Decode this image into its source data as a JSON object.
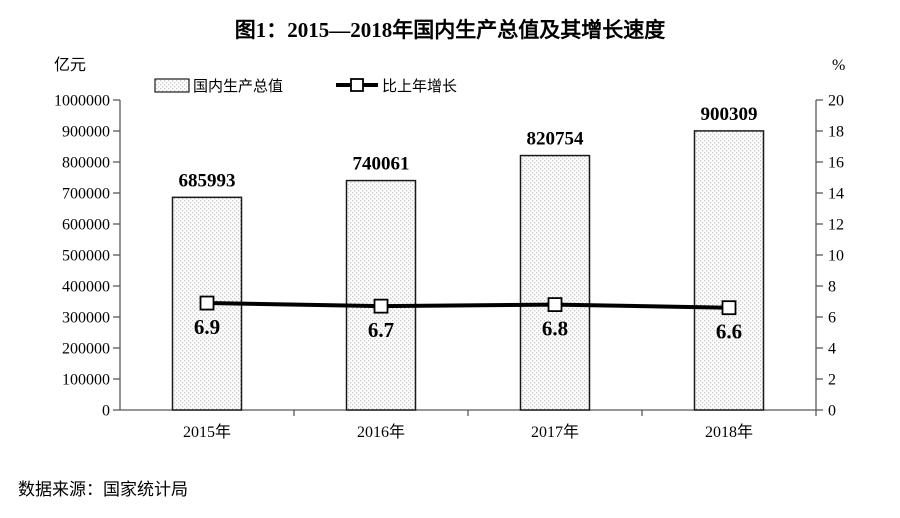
{
  "title": "图1：2015—2018年国内生产总值及其增长速度",
  "source": "数据来源：国家统计局",
  "chart_data": {
    "type": "bar+line",
    "categories": [
      "2015年",
      "2016年",
      "2017年",
      "2018年"
    ],
    "series": [
      {
        "name": "国内生产总值",
        "type": "bar",
        "axis": "left",
        "values": [
          685993,
          740061,
          820754,
          900309
        ],
        "value_labels": [
          "685993",
          "740061",
          "820754",
          "900309"
        ]
      },
      {
        "name": "比上年增长",
        "type": "line",
        "axis": "right",
        "values": [
          6.9,
          6.7,
          6.8,
          6.6
        ],
        "value_labels": [
          "6.9",
          "6.7",
          "6.8",
          "6.6"
        ]
      }
    ],
    "left_axis": {
      "unit": "亿元",
      "min": 0,
      "max": 1000000,
      "step": 100000,
      "ticks": [
        "0",
        "100000",
        "200000",
        "300000",
        "400000",
        "500000",
        "600000",
        "700000",
        "800000",
        "900000",
        "1000000"
      ]
    },
    "right_axis": {
      "unit": "%",
      "min": 0,
      "max": 20,
      "step": 2,
      "ticks": [
        "0",
        "2",
        "4",
        "6",
        "8",
        "10",
        "12",
        "14",
        "16",
        "18",
        "20"
      ]
    },
    "legend": [
      {
        "label": "国内生产总值",
        "marker": "patterned-bar-swatch"
      },
      {
        "label": "比上年增长",
        "marker": "line-with-square-marker"
      }
    ],
    "legend_position": "top",
    "grid": "off",
    "colors": {
      "background": "#ffffff",
      "text": "#000000",
      "axis": "#595959",
      "bar_border": "#1a1a1a",
      "bar_fill": "#fefefe",
      "bar_dot": "#c8c8c8",
      "line": "#000000",
      "marker_fill": "#ffffff"
    }
  }
}
